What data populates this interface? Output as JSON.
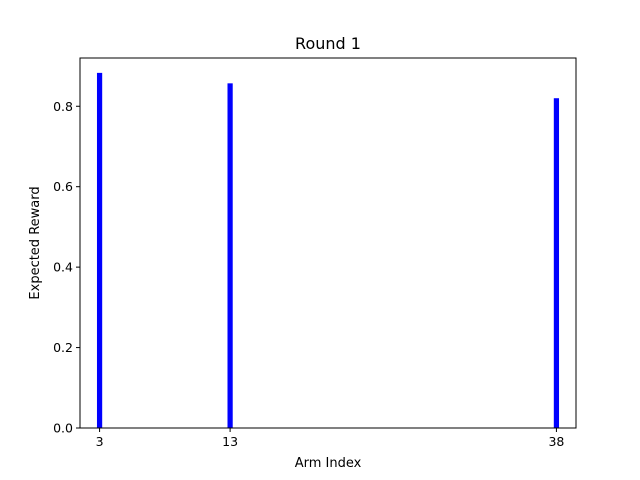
{
  "chart_data": {
    "type": "bar",
    "title": "Round 1",
    "xlabel": "Arm Index",
    "ylabel": "Expected Reward",
    "x": [
      3,
      13,
      38
    ],
    "x_tick_labels": [
      "3",
      "13",
      "38"
    ],
    "values": [
      0.883,
      0.857,
      0.82
    ],
    "xlim": [
      1.5,
      39.5
    ],
    "ylim": [
      0,
      0.92
    ],
    "y_ticks": [
      0.0,
      0.2,
      0.4,
      0.6,
      0.8
    ],
    "y_tick_labels": [
      "0.0",
      "0.2",
      "0.4",
      "0.6",
      "0.8"
    ],
    "bar_width": 0.4,
    "bar_color": "#0000ff",
    "grid": false,
    "legend": "none"
  }
}
